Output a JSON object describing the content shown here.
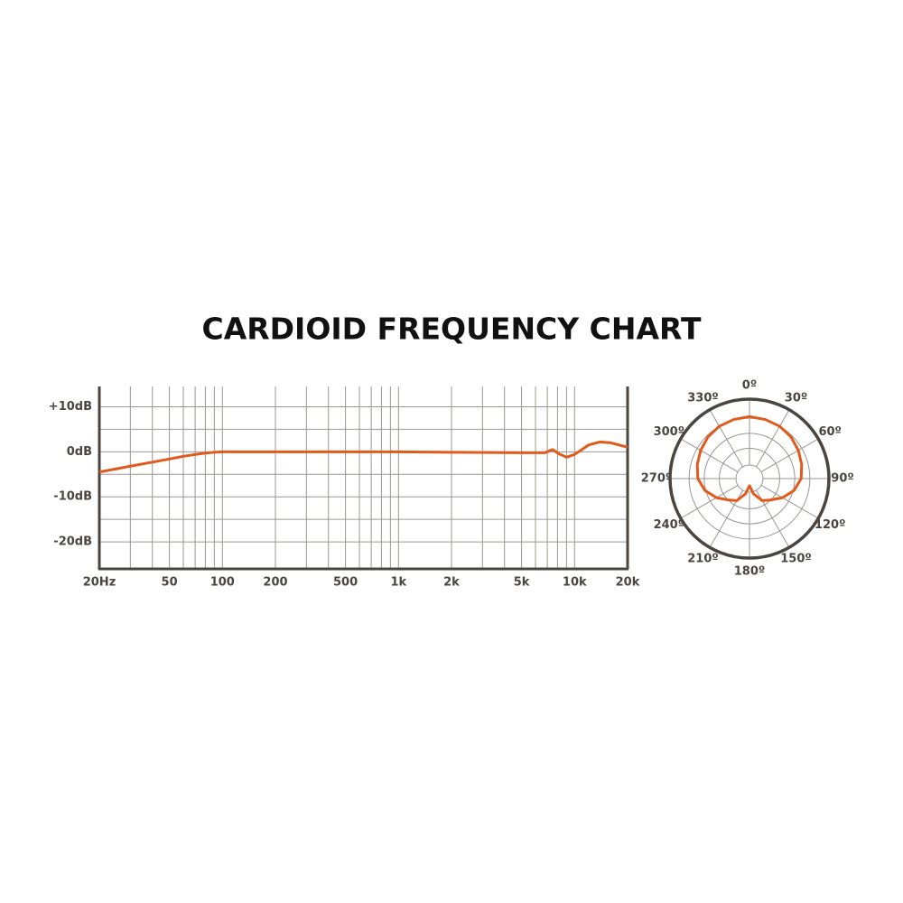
{
  "title": "CARDIOID FREQUENCY CHART",
  "chart_data": [
    {
      "type": "line",
      "xscale": "log",
      "xlim": [
        20,
        20000
      ],
      "xticks": [
        {
          "value": 20,
          "label": "20Hz"
        },
        50,
        100,
        200,
        500,
        {
          "value": 1000,
          "label": "1k"
        },
        {
          "value": 2000,
          "label": "2k"
        },
        {
          "value": 5000,
          "label": "5k"
        },
        {
          "value": 10000,
          "label": "10k"
        },
        {
          "value": 20000,
          "label": "20k"
        }
      ],
      "x_minor_gridlines": [
        30,
        40,
        60,
        70,
        80,
        90,
        300,
        400,
        600,
        700,
        800,
        900,
        3000,
        4000,
        6000,
        7000,
        8000,
        9000
      ],
      "ylim": [
        -26,
        14.5
      ],
      "yticks": [
        {
          "value": 10,
          "label": "+10dB"
        },
        {
          "value": 0,
          "label": "0dB"
        },
        {
          "value": -10,
          "label": "-10dB"
        },
        {
          "value": -20,
          "label": "-20dB"
        }
      ],
      "y_minor_gridlines": [
        5,
        -5,
        -15
      ],
      "grid": true,
      "x": [
        20,
        30,
        40,
        50,
        60,
        70,
        80,
        90,
        100,
        200,
        500,
        1000,
        2000,
        5000,
        6800,
        7500,
        8200,
        9000,
        10000,
        12000,
        14000,
        16000,
        20000
      ],
      "series": [
        {
          "color": "#e05a1c",
          "values": [
            -4.5,
            -3.2,
            -2.3,
            -1.6,
            -1.0,
            -0.6,
            -0.3,
            -0.1,
            0,
            0,
            0,
            0,
            -0.1,
            -0.2,
            -0.2,
            0.5,
            -0.5,
            -1.2,
            -0.6,
            1.5,
            2.2,
            2.0,
            1.0
          ]
        }
      ]
    },
    {
      "type": "polar",
      "rlim": [
        0,
        1
      ],
      "rgrid": [
        0.17,
        0.38,
        0.57,
        0.76
      ],
      "thetaticks": [
        {
          "value": 0,
          "label": "0º"
        },
        {
          "value": 30,
          "label": "30º"
        },
        {
          "value": 60,
          "label": "60º"
        },
        {
          "value": 90,
          "label": "90º"
        },
        {
          "value": 120,
          "label": "120º"
        },
        {
          "value": 150,
          "label": "150º"
        },
        {
          "value": 180,
          "label": "180º"
        },
        {
          "value": 210,
          "label": "210º"
        },
        {
          "value": 240,
          "label": "240º"
        },
        {
          "value": 270,
          "label": "270º"
        },
        {
          "value": 300,
          "label": "300º"
        },
        {
          "value": 330,
          "label": "330º"
        }
      ],
      "theta": [
        0,
        15,
        30,
        45,
        60,
        75,
        90,
        105,
        120,
        135,
        150,
        165,
        180,
        195,
        210,
        225,
        240,
        255,
        270,
        285,
        300,
        315,
        330,
        345
      ],
      "series": [
        {
          "color": "#e05a1c",
          "values": [
            0.78,
            0.77,
            0.76,
            0.74,
            0.71,
            0.68,
            0.65,
            0.58,
            0.48,
            0.38,
            0.32,
            0.2,
            0.09,
            0.2,
            0.32,
            0.38,
            0.48,
            0.58,
            0.65,
            0.68,
            0.71,
            0.74,
            0.76,
            0.77
          ]
        }
      ]
    }
  ]
}
